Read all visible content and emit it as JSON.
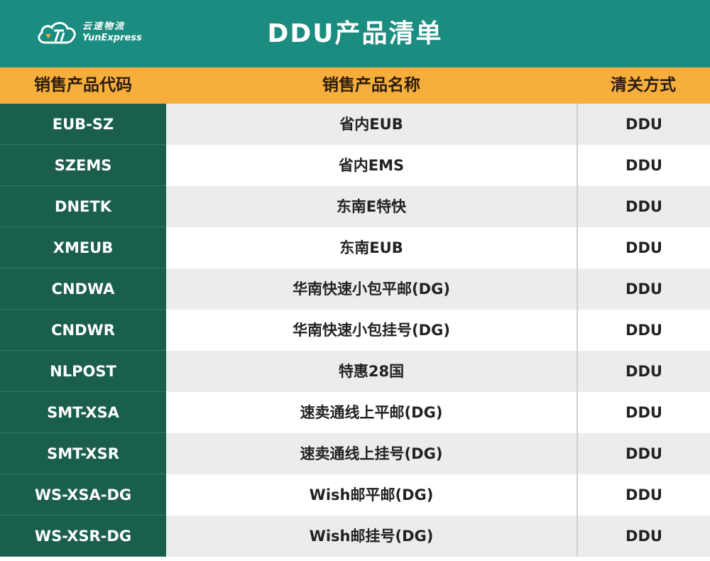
{
  "header": {
    "logo_cn": "云速物流",
    "logo_en": "YunExpress",
    "title": "DDU产品清单"
  },
  "columns": {
    "code": "销售产品代码",
    "name": "销售产品名称",
    "mode": "清关方式"
  },
  "rows": [
    {
      "code": "EUB-SZ",
      "name": "省内EUB",
      "mode": "DDU"
    },
    {
      "code": "SZEMS",
      "name": "省内EMS",
      "mode": "DDU"
    },
    {
      "code": "DNETK",
      "name": "东南E特快",
      "mode": "DDU"
    },
    {
      "code": "XMEUB",
      "name": "东南EUB",
      "mode": "DDU"
    },
    {
      "code": "CNDWA",
      "name": "华南快速小包平邮(DG)",
      "mode": "DDU"
    },
    {
      "code": "CNDWR",
      "name": "华南快速小包挂号(DG)",
      "mode": "DDU"
    },
    {
      "code": "NLPOST",
      "name": "特惠28国",
      "mode": "DDU"
    },
    {
      "code": "SMT-XSA",
      "name": "速卖通线上平邮(DG)",
      "mode": "DDU"
    },
    {
      "code": "SMT-XSR",
      "name": "速卖通线上挂号(DG)",
      "mode": "DDU"
    },
    {
      "code": "WS-XSA-DG",
      "name": "Wish邮平邮(DG)",
      "mode": "DDU"
    },
    {
      "code": "WS-XSR-DG",
      "name": "Wish邮挂号(DG)",
      "mode": "DDU"
    }
  ]
}
